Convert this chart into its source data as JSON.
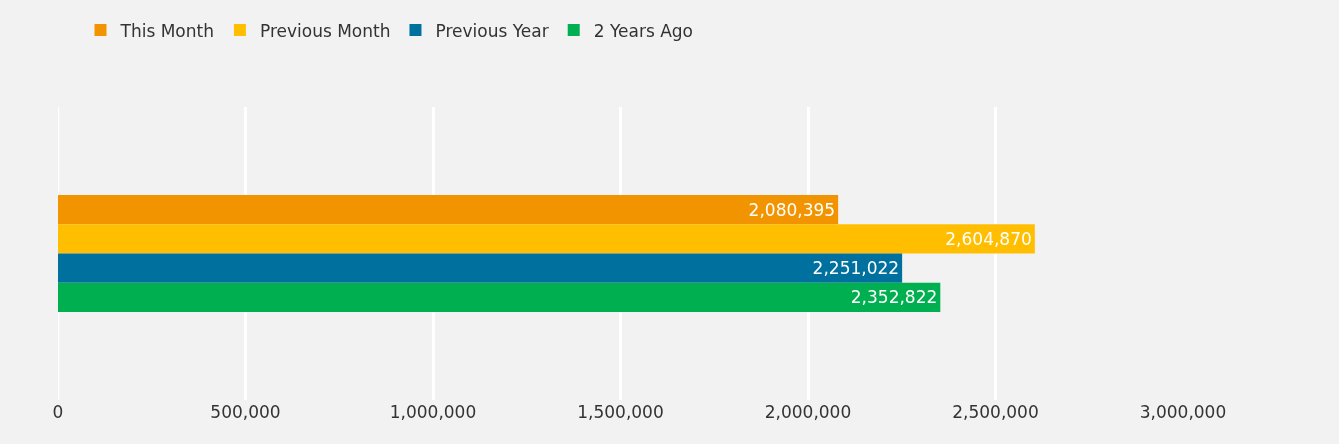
{
  "chart_data": {
    "type": "bar",
    "orientation": "horizontal",
    "categories": [
      null
    ],
    "series": [
      {
        "name": "This Month",
        "color": "#f29400",
        "values": [
          2080395
        ]
      },
      {
        "name": "Previous Month",
        "color": "#ffbf00",
        "values": [
          2604870
        ]
      },
      {
        "name": "Previous Year",
        "color": "#00709f",
        "values": [
          2251022
        ]
      },
      {
        "name": "2 Years Ago",
        "color": "#00af50",
        "values": [
          2352822
        ]
      }
    ],
    "xlim": [
      0,
      3000000
    ],
    "xticks": [
      {
        "value": 0,
        "label": "0"
      },
      {
        "value": 500000,
        "label": "500,000"
      },
      {
        "value": 1000000,
        "label": "1,000,000"
      },
      {
        "value": 1500000,
        "label": "1,500,000"
      },
      {
        "value": 2000000,
        "label": "2,000,000"
      },
      {
        "value": 2500000,
        "label": "2,500,000"
      },
      {
        "value": 3000000,
        "label": "3,000,000"
      }
    ],
    "grid": "x",
    "legend": "top left",
    "tick_labels": "x",
    "value_labels": [
      [
        "2,080,395"
      ],
      [
        "2,604,870"
      ],
      [
        "2,251,022"
      ],
      [
        "2,352,822"
      ]
    ]
  }
}
